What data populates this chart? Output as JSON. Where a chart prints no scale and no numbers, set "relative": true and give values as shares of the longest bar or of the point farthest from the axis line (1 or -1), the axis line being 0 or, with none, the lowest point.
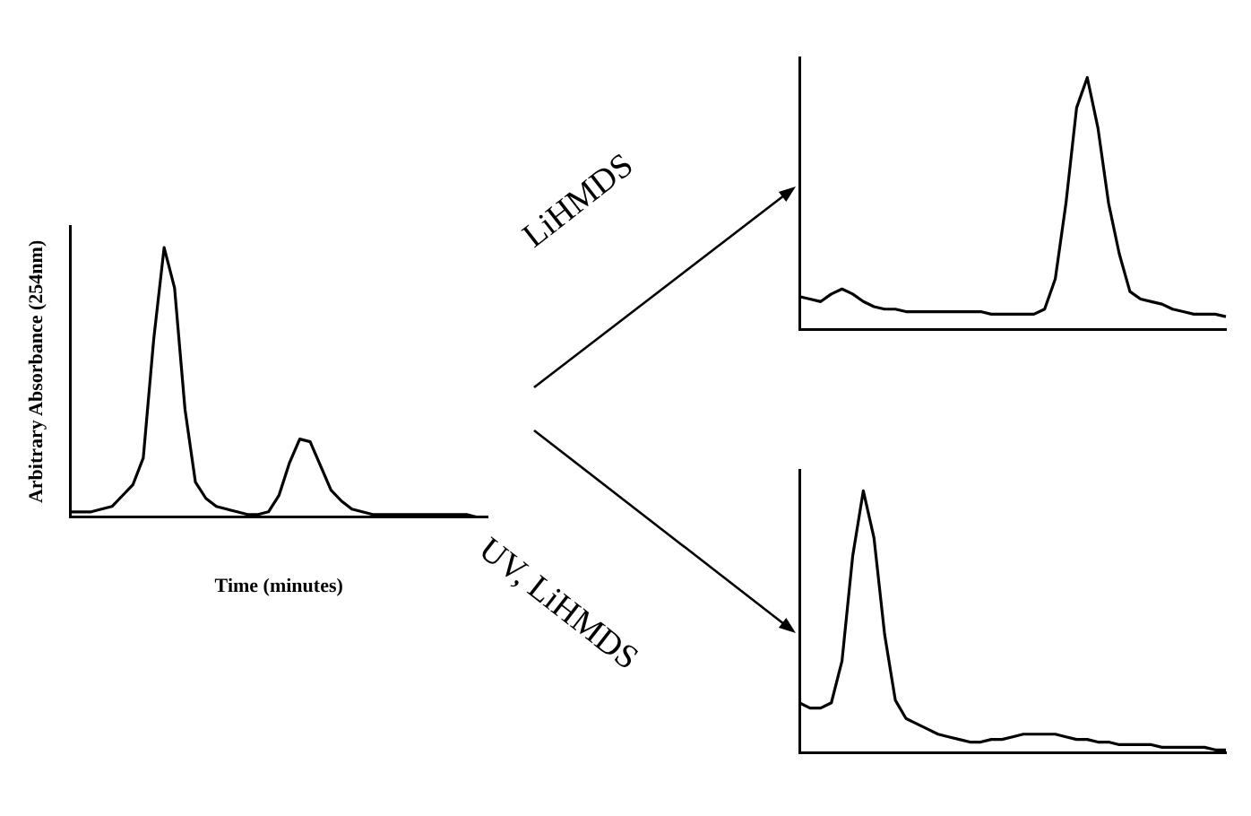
{
  "chart_data": [
    {
      "type": "line",
      "relative": true,
      "xlabel": "Time (minutes)",
      "ylabel": "Arbitrary Absorbance (254nm)",
      "categories": [
        null,
        null,
        null,
        null,
        null,
        null,
        null,
        null,
        null,
        null,
        null,
        null,
        null,
        null,
        null,
        null,
        null,
        null,
        null,
        null,
        null,
        null,
        null,
        null,
        null,
        null,
        null,
        null,
        null,
        null,
        null,
        null,
        null,
        null,
        null,
        null,
        null,
        null,
        null,
        null,
        null
      ],
      "series": [
        {
          "color": "#000000",
          "values": [
            0.02,
            0.02,
            0.02,
            0.03,
            0.04,
            0.08,
            0.12,
            0.22,
            0.66,
            1,
            0.85,
            0.4,
            0.13,
            0.07,
            0.04,
            0.03,
            0.02,
            0.01,
            0.01,
            0.02,
            0.08,
            0.2,
            0.29,
            0.28,
            0.19,
            0.1,
            0.06,
            0.03,
            0.02,
            0.01,
            0.01,
            0.01,
            0.01,
            0.01,
            0.01,
            0.01,
            0.01,
            0.01,
            0.01,
            0,
            0
          ]
        }
      ],
      "grid": false,
      "marker": "none",
      "line_style": "solid"
    },
    {
      "type": "line",
      "relative": true,
      "annotations": [
        "LiHMDS"
      ],
      "categories": [
        null,
        null,
        null,
        null,
        null,
        null,
        null,
        null,
        null,
        null,
        null,
        null,
        null,
        null,
        null,
        null,
        null,
        null,
        null,
        null,
        null,
        null,
        null,
        null,
        null,
        null,
        null,
        null,
        null,
        null,
        null,
        null,
        null,
        null,
        null,
        null,
        null,
        null,
        null,
        null,
        null
      ],
      "series": [
        {
          "color": "#000000",
          "values": [
            0.13,
            0.12,
            0.11,
            0.14,
            0.16,
            0.14,
            0.11,
            0.09,
            0.08,
            0.08,
            0.07,
            0.07,
            0.07,
            0.07,
            0.07,
            0.07,
            0.07,
            0.07,
            0.06,
            0.06,
            0.06,
            0.06,
            0.06,
            0.08,
            0.2,
            0.5,
            0.88,
            1,
            0.8,
            0.5,
            0.3,
            0.15,
            0.12,
            0.11,
            0.1,
            0.08,
            0.07,
            0.06,
            0.06,
            0.06,
            0.05
          ]
        }
      ],
      "grid": false,
      "marker": "none",
      "line_style": "solid"
    },
    {
      "type": "line",
      "relative": true,
      "annotations": [
        "UV, LiHMDS"
      ],
      "categories": [
        null,
        null,
        null,
        null,
        null,
        null,
        null,
        null,
        null,
        null,
        null,
        null,
        null,
        null,
        null,
        null,
        null,
        null,
        null,
        null,
        null,
        null,
        null,
        null,
        null,
        null,
        null,
        null,
        null,
        null,
        null,
        null,
        null,
        null,
        null,
        null,
        null,
        null,
        null,
        null,
        null
      ],
      "series": [
        {
          "color": "#000000",
          "values": [
            0.19,
            0.17,
            0.17,
            0.19,
            0.35,
            0.75,
            1,
            0.82,
            0.45,
            0.2,
            0.13,
            0.11,
            0.09,
            0.07,
            0.06,
            0.05,
            0.04,
            0.04,
            0.05,
            0.05,
            0.06,
            0.07,
            0.07,
            0.07,
            0.07,
            0.06,
            0.05,
            0.05,
            0.04,
            0.04,
            0.03,
            0.03,
            0.03,
            0.03,
            0.02,
            0.02,
            0.02,
            0.02,
            0.02,
            0.01,
            0.01
          ]
        }
      ],
      "grid": false,
      "marker": "none",
      "line_style": "solid"
    }
  ]
}
